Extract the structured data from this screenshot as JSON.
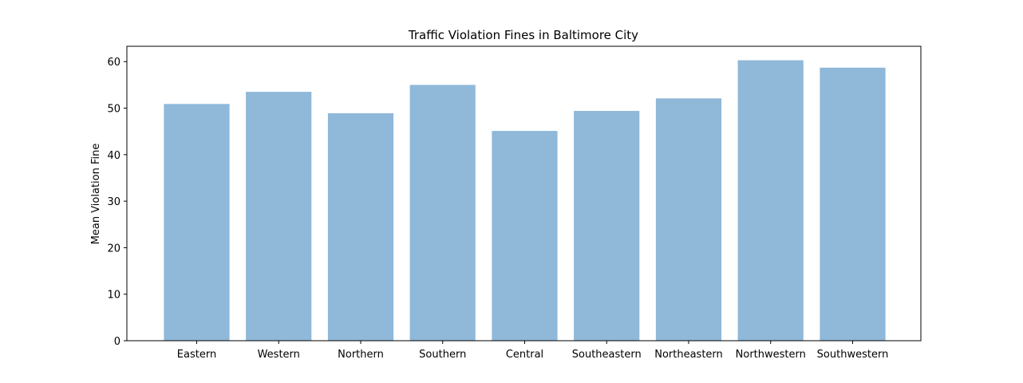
{
  "chart_data": {
    "type": "bar",
    "title": "Traffic Violation Fines in Baltimore City",
    "xlabel": "",
    "ylabel": "Mean Violation Fine",
    "categories": [
      "Eastern",
      "Western",
      "Northern",
      "Southern",
      "Central",
      "Southeastern",
      "Northeastern",
      "Northwestern",
      "Southwestern"
    ],
    "values": [
      50.9,
      53.5,
      48.9,
      55.0,
      45.1,
      49.4,
      52.1,
      60.3,
      58.7
    ],
    "ylim": [
      0,
      63.3
    ],
    "yticks": [
      0,
      10,
      20,
      30,
      40,
      50,
      60
    ],
    "ytick_labels": [
      "0",
      "10",
      "20",
      "30",
      "40",
      "50",
      "60"
    ],
    "grid": false,
    "bar_color": "#8fb8d9"
  }
}
